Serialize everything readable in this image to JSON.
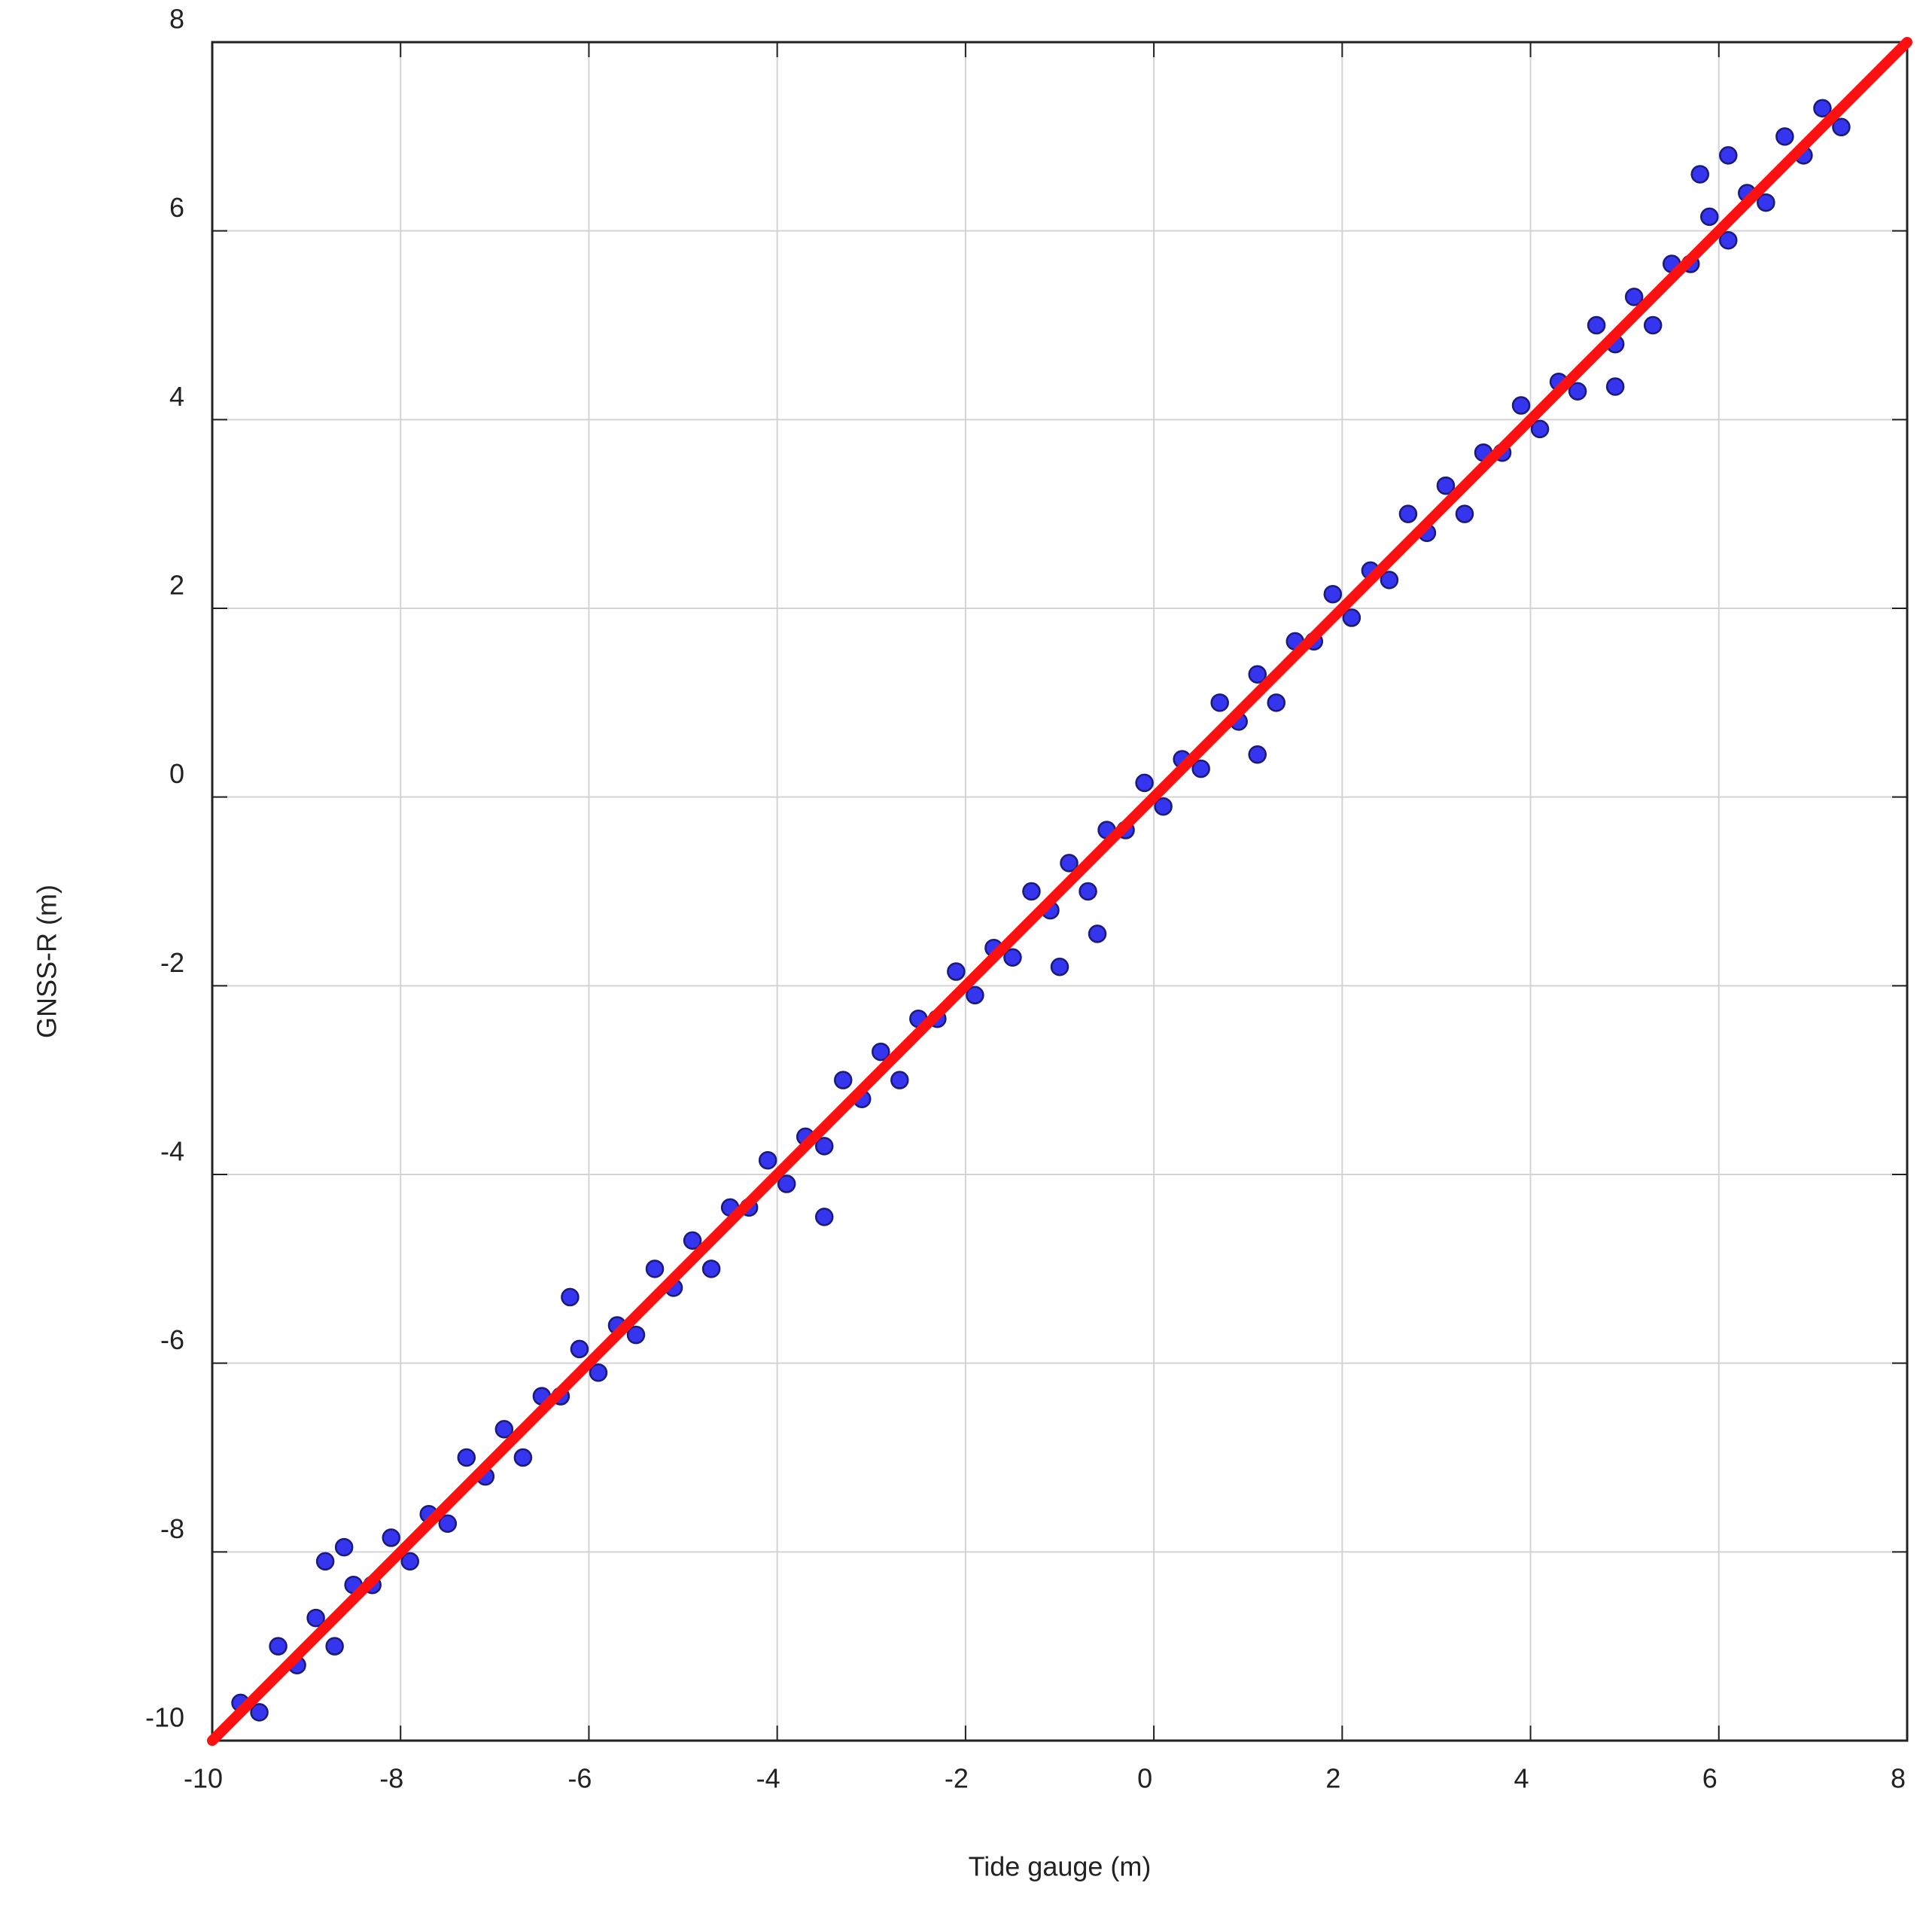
{
  "chart_data": {
    "type": "scatter",
    "xlabel": "Tide gauge (m)",
    "ylabel": "GNSS-R (m)",
    "xlim": [
      -10,
      8
    ],
    "ylim": [
      -10,
      8
    ],
    "xticks": [
      -10,
      -8,
      -6,
      -4,
      -2,
      0,
      2,
      4,
      6,
      8
    ],
    "yticks": [
      -10,
      -8,
      -6,
      -4,
      -2,
      0,
      2,
      4,
      6,
      8
    ],
    "grid": true,
    "series": [
      {
        "color": "#3535f0",
        "x": [
          -9.7,
          -9.5,
          -9.3,
          -9.1,
          -8.9,
          -8.7,
          -8.5,
          -8.3,
          -8.1,
          -7.9,
          -7.7,
          -7.5,
          -7.3,
          -7.1,
          -6.9,
          -6.7,
          -6.5,
          -6.3,
          -6.1,
          -5.9,
          -5.7,
          -5.5,
          -5.3,
          -5.1,
          -4.9,
          -4.7,
          -4.5,
          -4.3,
          -4.1,
          -3.9,
          -3.7,
          -3.5,
          -3.3,
          -3.1,
          -2.9,
          -2.7,
          -2.5,
          -2.3,
          -2.1,
          -1.9,
          -1.7,
          -1.5,
          -1.3,
          -1.1,
          -0.9,
          -0.7,
          -0.5,
          -0.3,
          -0.1,
          0.1,
          0.3,
          0.5,
          0.7,
          0.9,
          1.1,
          1.3,
          1.5,
          1.7,
          1.9,
          2.1,
          2.3,
          2.5,
          2.7,
          2.9,
          3.1,
          3.3,
          3.5,
          3.7,
          3.9,
          4.1,
          4.3,
          4.5,
          4.7,
          4.9,
          5.1,
          5.3,
          5.5,
          5.7,
          5.9,
          6.1,
          6.3,
          6.5,
          6.7,
          6.9,
          7.1,
          7.3,
          -8.8,
          -8.6,
          4.9,
          6.1,
          -0.6,
          -1.0,
          -3.5,
          -6.2,
          1.1,
          5.8
        ],
        "values": [
          -9.6,
          -9.7,
          -9.0,
          -9.2,
          -8.7,
          -9.0,
          -8.35,
          -8.35,
          -7.85,
          -8.1,
          -7.6,
          -7.7,
          -7.0,
          -7.2,
          -6.7,
          -7.0,
          -6.35,
          -6.35,
          -5.85,
          -6.1,
          -5.6,
          -5.7,
          -5.0,
          -5.2,
          -4.7,
          -5.0,
          -4.35,
          -4.35,
          -3.85,
          -4.1,
          -3.6,
          -3.7,
          -3.0,
          -3.2,
          -2.7,
          -3.0,
          -2.35,
          -2.35,
          -1.85,
          -2.1,
          -1.6,
          -1.7,
          -1.0,
          -1.2,
          -0.7,
          -1.0,
          -0.35,
          -0.35,
          0.15,
          -0.1,
          0.4,
          0.3,
          1.0,
          0.8,
          1.3,
          1.0,
          1.65,
          1.65,
          2.15,
          1.9,
          2.4,
          2.3,
          3.0,
          2.8,
          3.3,
          3.0,
          3.65,
          3.65,
          4.15,
          3.9,
          4.4,
          4.3,
          5.0,
          4.8,
          5.3,
          5.0,
          5.65,
          5.65,
          6.15,
          5.9,
          6.4,
          6.3,
          7.0,
          6.8,
          7.3,
          7.1,
          -8.1,
          -7.95,
          4.35,
          6.8,
          -1.45,
          -1.8,
          -4.45,
          -5.3,
          0.45,
          6.6
        ]
      }
    ],
    "reference_line": {
      "color": "#ff1010",
      "x": [
        -10,
        8
      ],
      "values": [
        -10,
        8
      ]
    }
  }
}
